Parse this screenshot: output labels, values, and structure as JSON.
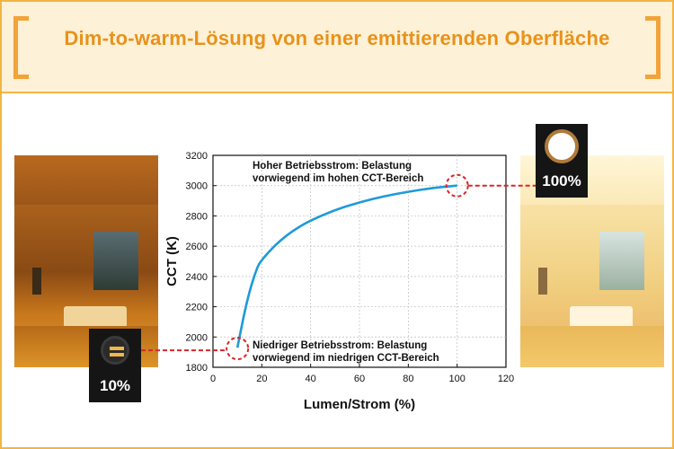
{
  "header": {
    "title": "Dim-to-warm-Lösung von einer emittierenden Oberfläche"
  },
  "badges": {
    "low_label": "10%",
    "high_label": "100%"
  },
  "colors": {
    "accent": "#f2b544",
    "title": "#e8921a",
    "curve": "#1e9ad8",
    "marker": "#d8262a"
  },
  "chart_data": {
    "type": "line",
    "title": "",
    "xlabel": "Lumen/Strom (%)",
    "ylabel": "CCT (K)",
    "xlim": [
      0,
      120
    ],
    "ylim": [
      1800,
      3200
    ],
    "xticks": [
      0,
      20,
      40,
      60,
      80,
      100,
      120
    ],
    "yticks": [
      1800,
      2000,
      2200,
      2400,
      2600,
      2800,
      3000,
      3200
    ],
    "grid": true,
    "series": [
      {
        "x": [
          10,
          14,
          18,
          20,
          25,
          30,
          35,
          40,
          50,
          60,
          70,
          80,
          90,
          100
        ],
        "y": [
          1930,
          2250,
          2460,
          2510,
          2600,
          2670,
          2725,
          2770,
          2840,
          2890,
          2930,
          2960,
          2985,
          3000
        ]
      }
    ],
    "annotations": {
      "high": [
        "Hoher Betriebsstrom: Belastung",
        "vorwiegend im hohen CCT-Bereich"
      ],
      "low": [
        "Niedriger Betriebsstrom: Belastung",
        "vorwiegend im niedrigen CCT-Bereich"
      ]
    }
  }
}
